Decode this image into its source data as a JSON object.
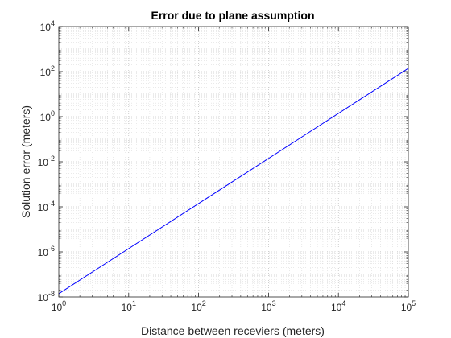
{
  "chart_data": {
    "type": "line",
    "title": "Error due to plane assumption",
    "xlabel": "Distance between receviers (meters)",
    "ylabel": "Solution error (meters)",
    "xscale": "log",
    "yscale": "log",
    "xlim": [
      1,
      100000
    ],
    "ylim": [
      1e-08,
      10000
    ],
    "grid": true,
    "minor_grid": true,
    "xticks": [
      {
        "base": "10",
        "exp": "0",
        "value": 1
      },
      {
        "base": "10",
        "exp": "1",
        "value": 10
      },
      {
        "base": "10",
        "exp": "2",
        "value": 100
      },
      {
        "base": "10",
        "exp": "3",
        "value": 1000
      },
      {
        "base": "10",
        "exp": "4",
        "value": 10000
      },
      {
        "base": "10",
        "exp": "5",
        "value": 100000
      }
    ],
    "yticks": [
      {
        "base": "10",
        "exp": "-8",
        "value": 1e-08
      },
      {
        "base": "10",
        "exp": "-6",
        "value": 1e-06
      },
      {
        "base": "10",
        "exp": "-4",
        "value": 0.0001
      },
      {
        "base": "10",
        "exp": "-2",
        "value": 0.01
      },
      {
        "base": "10",
        "exp": "0",
        "value": 1
      },
      {
        "base": "10",
        "exp": "2",
        "value": 100
      },
      {
        "base": "10",
        "exp": "4",
        "value": 10000
      }
    ],
    "series": [
      {
        "color": "#0000ff",
        "x": [
          1,
          100000
        ],
        "y": [
          1.4e-08,
          140
        ]
      }
    ]
  }
}
